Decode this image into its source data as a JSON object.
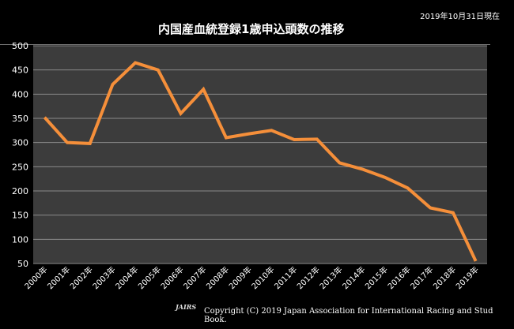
{
  "header": {
    "as_of": "2019年10月31日現在"
  },
  "footer": {
    "copyright": "Copyright (C) 2019 Japan Association for International Racing and Stud Book.",
    "logo_text": "JAIRS"
  },
  "colors": {
    "line": "#f58f3a",
    "plot_bg": "#3c3c3c",
    "grid": "#8a8a8a"
  },
  "chart_data": {
    "type": "line",
    "title": "内国産血統登録1歳申込頭数の推移",
    "xlabel": "",
    "ylabel": "",
    "categories": [
      "2000年",
      "2001年",
      "2002年",
      "2003年",
      "2004年",
      "2005年",
      "2006年",
      "2007年",
      "2008年",
      "2009年",
      "2010年",
      "2011年",
      "2012年",
      "2013年",
      "2014年",
      "2015年",
      "2016年",
      "2017年",
      "2018年",
      "2019年"
    ],
    "values": [
      352,
      300,
      298,
      420,
      465,
      450,
      360,
      410,
      310,
      318,
      325,
      306,
      307,
      258,
      245,
      228,
      206,
      165,
      155,
      55
    ],
    "ylim": [
      50,
      500
    ],
    "yticks": [
      "50",
      "100",
      "150",
      "200",
      "250",
      "300",
      "350",
      "400",
      "450",
      "500"
    ],
    "grid": true,
    "legend": "none"
  }
}
